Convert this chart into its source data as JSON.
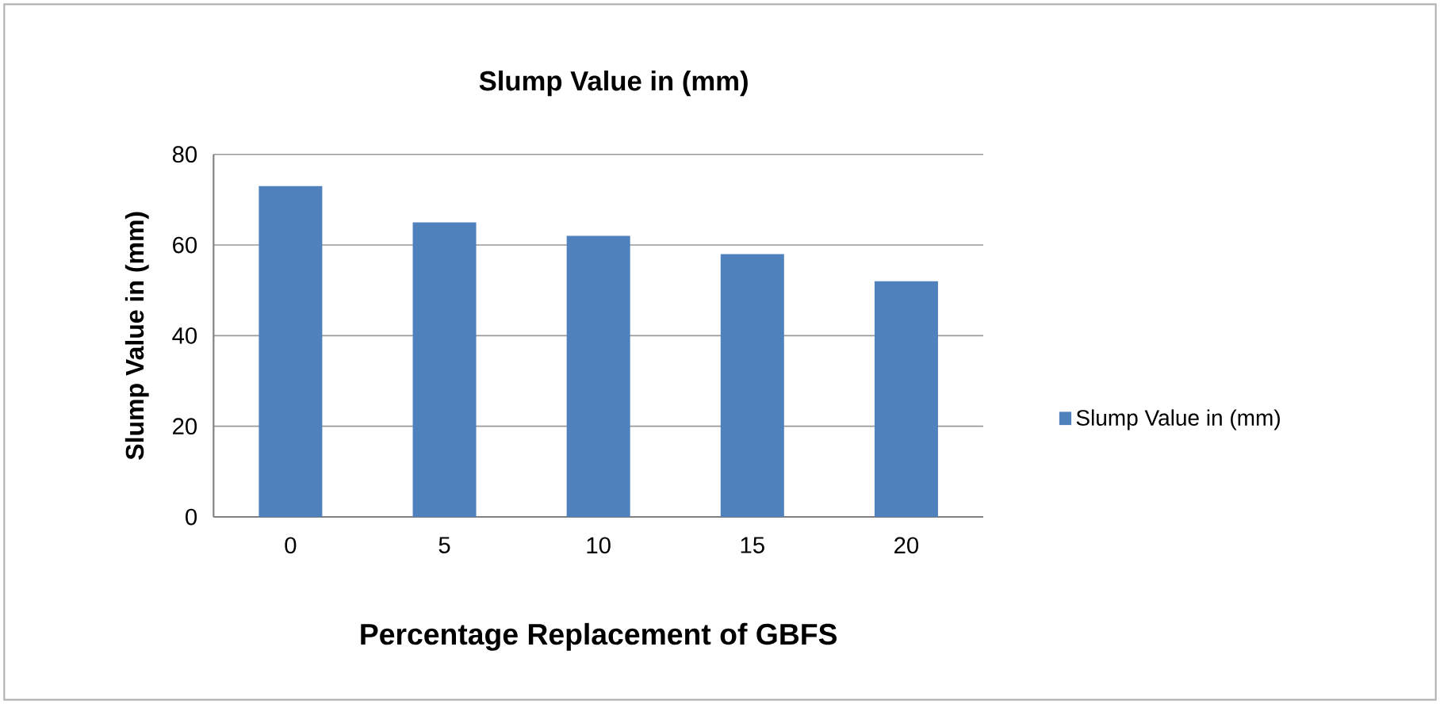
{
  "chart_data": {
    "type": "bar",
    "title": "Slump Value in (mm)",
    "xlabel": "Percentage Replacement of GBFS",
    "ylabel": "Slump Value in (mm)",
    "categories": [
      "0",
      "5",
      "10",
      "15",
      "20"
    ],
    "series": [
      {
        "name": "Slump Value in (mm)",
        "color": "#4f81bd",
        "values": [
          73,
          65,
          62,
          58,
          52
        ]
      }
    ],
    "ylim": [
      0,
      80
    ],
    "yticks": [
      0,
      20,
      40,
      60,
      80
    ],
    "grid": "y",
    "legend": "right"
  }
}
